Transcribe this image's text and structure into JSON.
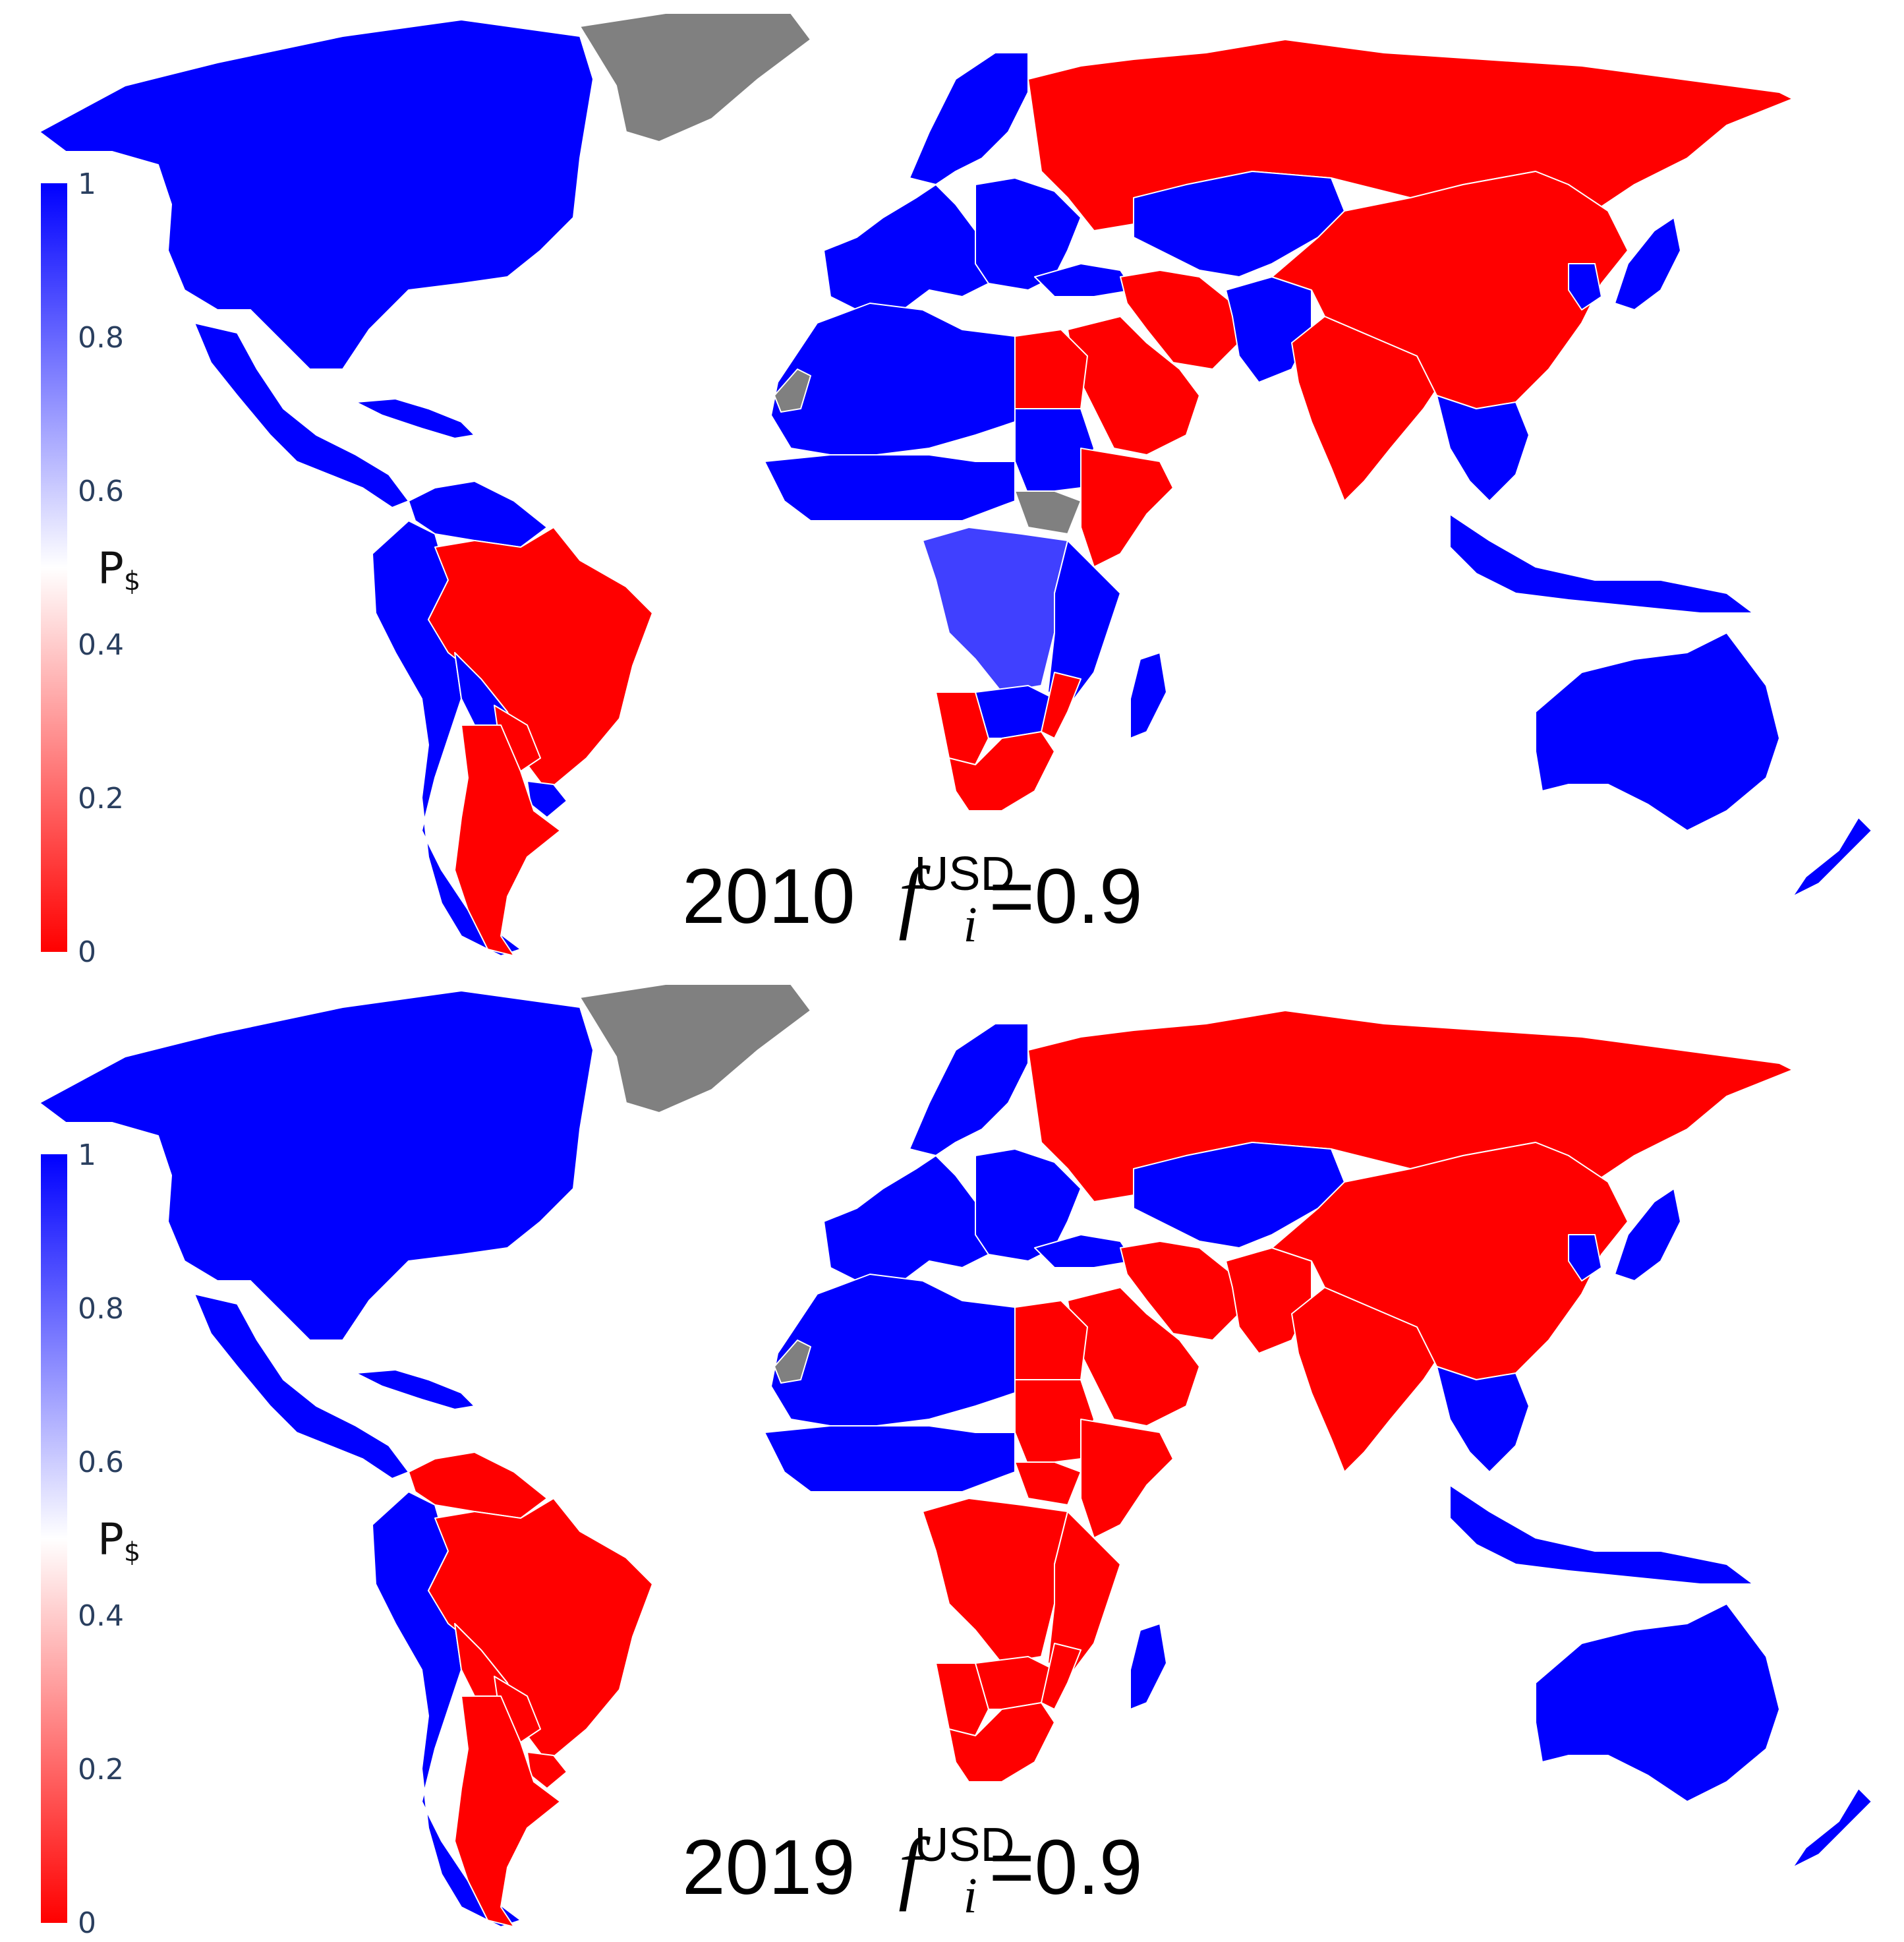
{
  "figure": {
    "colors": {
      "usd_high": "#0000ff",
      "usd_mid": "#4040ff",
      "usd_low": "#ff0000",
      "no_data": "#808080",
      "border": "#ffffff"
    },
    "colorbar": {
      "title_main": "P",
      "title_sub": "$",
      "ticks": [
        "1",
        "0.8",
        "0.6",
        "0.4",
        "0.2",
        "0"
      ]
    },
    "panels": [
      {
        "year": "2010",
        "param_symbol": "f",
        "param_superscript": "USD",
        "param_subscript": "i",
        "param_value": "=0.9",
        "regions": {
          "north_america": "usd",
          "greenland": "none",
          "central_america": "usd",
          "caribbean": "usd",
          "south_america_north": "usd",
          "brazil": "other",
          "south_america_west": "usd",
          "argentina": "other",
          "uruguay": "usd",
          "paraguay": "other",
          "bolivia": "usd",
          "chile": "usd",
          "europe_west": "usd",
          "scandinavia": "usd",
          "eastern_europe": "usd",
          "turkey": "usd",
          "russia": "other",
          "central_asia": "usd",
          "iran": "other",
          "arabia": "other",
          "afghanistan_pakistan": "usd",
          "india": "other",
          "china_mongolia": "other",
          "japan": "usd",
          "korea": "usd",
          "southeast_asia": "usd",
          "indonesia": "usd",
          "north_africa": "usd",
          "west_africa": "usd",
          "egypt": "other",
          "horn_of_africa": "other",
          "sudan": "usd",
          "south_sudan": "none",
          "central_africa": "usd_mid",
          "east_africa": "usd",
          "southern_africa_west": "other",
          "south_africa": "other",
          "zimbabwe_botswana": "usd",
          "mozambique": "other",
          "madagascar": "usd",
          "australia": "usd",
          "new_zealand": "usd",
          "western_sahara": "none"
        }
      },
      {
        "year": "2019",
        "param_symbol": "f",
        "param_superscript": "USD",
        "param_subscript": "i",
        "param_value": "=0.9",
        "regions": {
          "north_america": "usd",
          "greenland": "none",
          "central_america": "usd",
          "caribbean": "usd",
          "south_america_north": "other",
          "brazil": "other",
          "south_america_west": "usd",
          "argentina": "other",
          "uruguay": "other",
          "paraguay": "other",
          "bolivia": "other",
          "chile": "usd",
          "europe_west": "usd",
          "scandinavia": "usd",
          "eastern_europe": "usd",
          "turkey": "usd",
          "russia": "other",
          "central_asia": "usd",
          "iran": "other",
          "arabia": "other",
          "afghanistan_pakistan": "other",
          "india": "other",
          "china_mongolia": "other",
          "japan": "usd",
          "korea": "usd",
          "southeast_asia": "usd",
          "indonesia": "usd",
          "north_africa": "usd",
          "west_africa": "usd",
          "egypt": "other",
          "horn_of_africa": "other",
          "sudan": "other",
          "south_sudan": "other",
          "central_africa": "other",
          "east_africa": "other",
          "southern_africa_west": "other",
          "south_africa": "other",
          "zimbabwe_botswana": "other",
          "mozambique": "other",
          "madagascar": "usd",
          "australia": "usd",
          "new_zealand": "usd",
          "western_sahara": "none"
        }
      }
    ]
  }
}
